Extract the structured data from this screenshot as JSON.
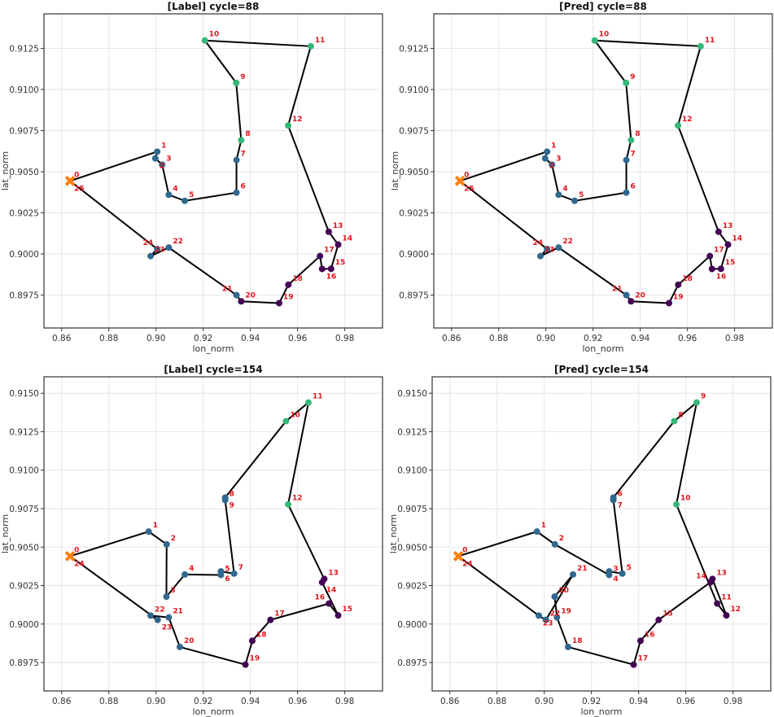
{
  "colors": {
    "blue": "#31688e",
    "green": "#35b779",
    "purple": "#440154",
    "depot": "#ff7f0e",
    "line": "#000000",
    "label": "#e0141e"
  },
  "chart_data": [
    {
      "type": "line",
      "title": "[Label]  cycle=88",
      "xlabel": "lon_norm",
      "ylabel": "lat_norm",
      "xlim": [
        0.8525,
        0.996
      ],
      "ylim": [
        0.8955,
        0.9146
      ],
      "grid": true,
      "xticks": [
        "0.86",
        "0.88",
        "0.90",
        "0.92",
        "0.94",
        "0.96",
        "0.98"
      ],
      "yticks": [
        "0.8975",
        "0.9000",
        "0.9025",
        "0.9050",
        "0.9075",
        "0.9100",
        "0.9125"
      ],
      "depot": {
        "x": 0.8636,
        "y": 0.90444,
        "labels": [
          "0",
          "25"
        ]
      },
      "points": [
        [
          0.9005,
          0.90622,
          "1",
          "blue"
        ],
        [
          0.8997,
          0.90581,
          "2",
          "blue"
        ],
        [
          0.9026,
          0.90543,
          "3",
          "blue"
        ],
        [
          0.9054,
          0.9036,
          "4",
          "blue"
        ],
        [
          0.9122,
          0.90323,
          "5",
          "blue"
        ],
        [
          0.9341,
          0.90373,
          "6",
          "blue"
        ],
        [
          0.9341,
          0.90571,
          "7",
          "blue"
        ],
        [
          0.9361,
          0.90692,
          "8",
          "green"
        ],
        [
          0.934,
          0.9104,
          "9",
          "green"
        ],
        [
          0.9207,
          0.91298,
          "10",
          "green"
        ],
        [
          0.9656,
          0.91263,
          "11",
          "green"
        ],
        [
          0.956,
          0.90781,
          "12",
          "green"
        ],
        [
          0.9732,
          0.90135,
          "13",
          "purple"
        ],
        [
          0.9772,
          0.90057,
          "14",
          "purple"
        ],
        [
          0.9742,
          0.8991,
          "15",
          "purple"
        ],
        [
          0.9704,
          0.89909,
          "16",
          "purple"
        ],
        [
          0.9695,
          0.89987,
          "17",
          "purple"
        ],
        [
          0.9561,
          0.89813,
          "18",
          "purple"
        ],
        [
          0.9522,
          0.89701,
          "19",
          "purple"
        ],
        [
          0.9361,
          0.89712,
          "20",
          "purple"
        ],
        [
          0.9341,
          0.8975,
          "21",
          "blue"
        ],
        [
          0.9054,
          0.90039,
          "22",
          "blue"
        ],
        [
          0.8977,
          0.89987,
          "23",
          "blue"
        ],
        [
          0.9005,
          0.9003,
          "24",
          "blue"
        ]
      ]
    },
    {
      "type": "line",
      "title": "[Pred]  cycle=88",
      "xlabel": "lon_norm",
      "ylabel": "lat_norm",
      "xlim": [
        0.8525,
        0.996
      ],
      "ylim": [
        0.8955,
        0.9146
      ],
      "grid": true,
      "xticks": [
        "0.86",
        "0.88",
        "0.90",
        "0.92",
        "0.94",
        "0.96",
        "0.98"
      ],
      "yticks": [
        "0.8975",
        "0.9000",
        "0.9025",
        "0.9050",
        "0.9075",
        "0.9100",
        "0.9125"
      ],
      "depot": {
        "x": 0.8636,
        "y": 0.90444,
        "labels": [
          "0",
          "25"
        ]
      },
      "points": [
        [
          0.9005,
          0.90622,
          "1",
          "blue"
        ],
        [
          0.8997,
          0.90581,
          "2",
          "blue"
        ],
        [
          0.9026,
          0.90543,
          "3",
          "blue"
        ],
        [
          0.9054,
          0.9036,
          "4",
          "blue"
        ],
        [
          0.9122,
          0.90323,
          "5",
          "blue"
        ],
        [
          0.9341,
          0.90373,
          "6",
          "blue"
        ],
        [
          0.9341,
          0.90571,
          "7",
          "blue"
        ],
        [
          0.9361,
          0.90692,
          "8",
          "green"
        ],
        [
          0.934,
          0.9104,
          "9",
          "green"
        ],
        [
          0.9207,
          0.91298,
          "10",
          "green"
        ],
        [
          0.9656,
          0.91263,
          "11",
          "green"
        ],
        [
          0.956,
          0.90781,
          "12",
          "green"
        ],
        [
          0.9732,
          0.90135,
          "13",
          "purple"
        ],
        [
          0.9772,
          0.90057,
          "14",
          "purple"
        ],
        [
          0.9742,
          0.8991,
          "15",
          "purple"
        ],
        [
          0.9704,
          0.89909,
          "16",
          "purple"
        ],
        [
          0.9695,
          0.89987,
          "17",
          "purple"
        ],
        [
          0.9561,
          0.89813,
          "18",
          "purple"
        ],
        [
          0.9522,
          0.89701,
          "19",
          "purple"
        ],
        [
          0.9361,
          0.89712,
          "20",
          "purple"
        ],
        [
          0.9341,
          0.8975,
          "21",
          "blue"
        ],
        [
          0.9054,
          0.90039,
          "22",
          "blue"
        ],
        [
          0.8977,
          0.89987,
          "23",
          "blue"
        ],
        [
          0.9005,
          0.9003,
          "24",
          "blue"
        ]
      ]
    },
    {
      "type": "line",
      "title": "[Label]  cycle=154",
      "xlabel": "lon_norm",
      "ylabel": "lat_norm",
      "xlim": [
        0.8525,
        0.996
      ],
      "ylim": [
        0.89565,
        0.91607
      ],
      "grid": true,
      "xticks": [
        "0.86",
        "0.88",
        "0.90",
        "0.92",
        "0.94",
        "0.96",
        "0.98"
      ],
      "yticks": [
        "0.8975",
        "0.9000",
        "0.9025",
        "0.9050",
        "0.9075",
        "0.9100",
        "0.9125",
        "0.9150"
      ],
      "depot": {
        "x": 0.8636,
        "y": 0.90441,
        "labels": [
          "0",
          "24"
        ]
      },
      "points": [
        [
          0.8969,
          0.90601,
          "1",
          "blue"
        ],
        [
          0.9045,
          0.90518,
          "2",
          "blue"
        ],
        [
          0.9044,
          0.90178,
          "3",
          "blue"
        ],
        [
          0.9122,
          0.90322,
          "4",
          "blue"
        ],
        [
          0.9275,
          0.90319,
          "5",
          "blue"
        ],
        [
          0.9275,
          0.90342,
          "6",
          "blue"
        ],
        [
          0.9331,
          0.90328,
          "7",
          "blue"
        ],
        [
          0.9293,
          0.90806,
          "8",
          "blue"
        ],
        [
          0.9293,
          0.90822,
          "9",
          "blue"
        ],
        [
          0.9551,
          0.91319,
          "10",
          "green"
        ],
        [
          0.9646,
          0.9144,
          "11",
          "green"
        ],
        [
          0.956,
          0.90778,
          "12",
          "green"
        ],
        [
          0.9713,
          0.90293,
          "13",
          "purple"
        ],
        [
          0.9704,
          0.90271,
          "14",
          "purple"
        ],
        [
          0.9772,
          0.90056,
          "15",
          "purple"
        ],
        [
          0.9733,
          0.90133,
          "16",
          "purple"
        ],
        [
          0.9485,
          0.90027,
          "17",
          "purple"
        ],
        [
          0.9408,
          0.89891,
          "18",
          "purple"
        ],
        [
          0.9379,
          0.89736,
          "19",
          "purple"
        ],
        [
          0.9101,
          0.89851,
          "20",
          "blue"
        ],
        [
          0.9054,
          0.90043,
          "21",
          "blue"
        ],
        [
          0.8977,
          0.90055,
          "22",
          "blue"
        ],
        [
          0.9007,
          0.90027,
          "23",
          "blue"
        ]
      ]
    },
    {
      "type": "line",
      "title": "[Pred]  cycle=154",
      "xlabel": "lon_norm",
      "ylabel": "lat_norm",
      "xlim": [
        0.8525,
        0.996
      ],
      "ylim": [
        0.89565,
        0.91607
      ],
      "grid": true,
      "xticks": [
        "0.86",
        "0.88",
        "0.90",
        "0.92",
        "0.94",
        "0.96",
        "0.98"
      ],
      "yticks": [
        "0.8975",
        "0.9000",
        "0.9025",
        "0.9050",
        "0.9075",
        "0.9100",
        "0.9125",
        "0.9150"
      ],
      "depot": {
        "x": 0.8636,
        "y": 0.90441,
        "labels": [
          "0",
          "24"
        ]
      },
      "points": [
        [
          0.8969,
          0.90601,
          "1",
          "blue"
        ],
        [
          0.9045,
          0.90518,
          "2",
          "blue"
        ],
        [
          0.9275,
          0.90319,
          "3",
          "blue"
        ],
        [
          0.9275,
          0.90342,
          "4",
          "blue"
        ],
        [
          0.9331,
          0.90328,
          "5",
          "blue"
        ],
        [
          0.9293,
          0.90806,
          "6",
          "blue"
        ],
        [
          0.9293,
          0.90822,
          "7",
          "blue"
        ],
        [
          0.9551,
          0.91319,
          "8",
          "green"
        ],
        [
          0.9646,
          0.9144,
          "9",
          "green"
        ],
        [
          0.956,
          0.90778,
          "10",
          "green"
        ],
        [
          0.9733,
          0.90133,
          "11",
          "purple"
        ],
        [
          0.9772,
          0.90056,
          "12",
          "purple"
        ],
        [
          0.9713,
          0.90293,
          "13",
          "purple"
        ],
        [
          0.9704,
          0.90271,
          "14",
          "purple"
        ],
        [
          0.9485,
          0.90027,
          "15",
          "purple"
        ],
        [
          0.9408,
          0.89891,
          "16",
          "purple"
        ],
        [
          0.9379,
          0.89736,
          "17",
          "purple"
        ],
        [
          0.9101,
          0.89851,
          "18",
          "blue"
        ],
        [
          0.9054,
          0.90043,
          "19",
          "blue"
        ],
        [
          0.9044,
          0.90178,
          "20",
          "blue"
        ],
        [
          0.9122,
          0.90322,
          "21",
          "blue"
        ],
        [
          0.9007,
          0.90027,
          "22",
          "blue"
        ],
        [
          0.8977,
          0.90055,
          "23",
          "blue"
        ]
      ]
    }
  ]
}
